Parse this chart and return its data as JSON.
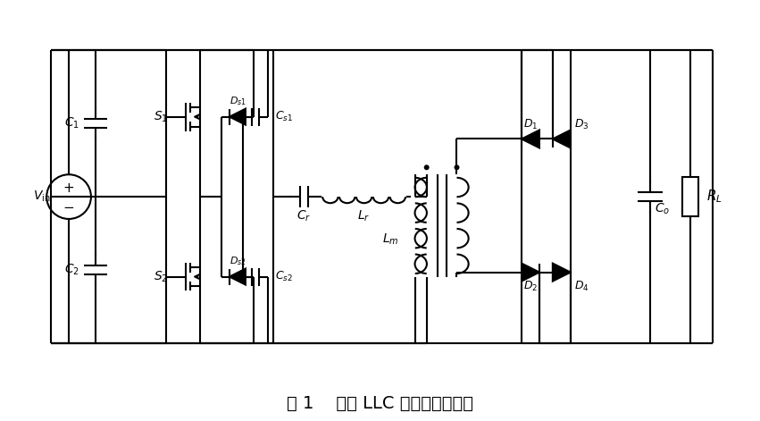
{
  "title": "图 1    半桥 LLC 谐振变换器拓扑",
  "title_fontsize": 14,
  "bg": "#ffffff",
  "lc": "#000000",
  "lw": 1.5
}
